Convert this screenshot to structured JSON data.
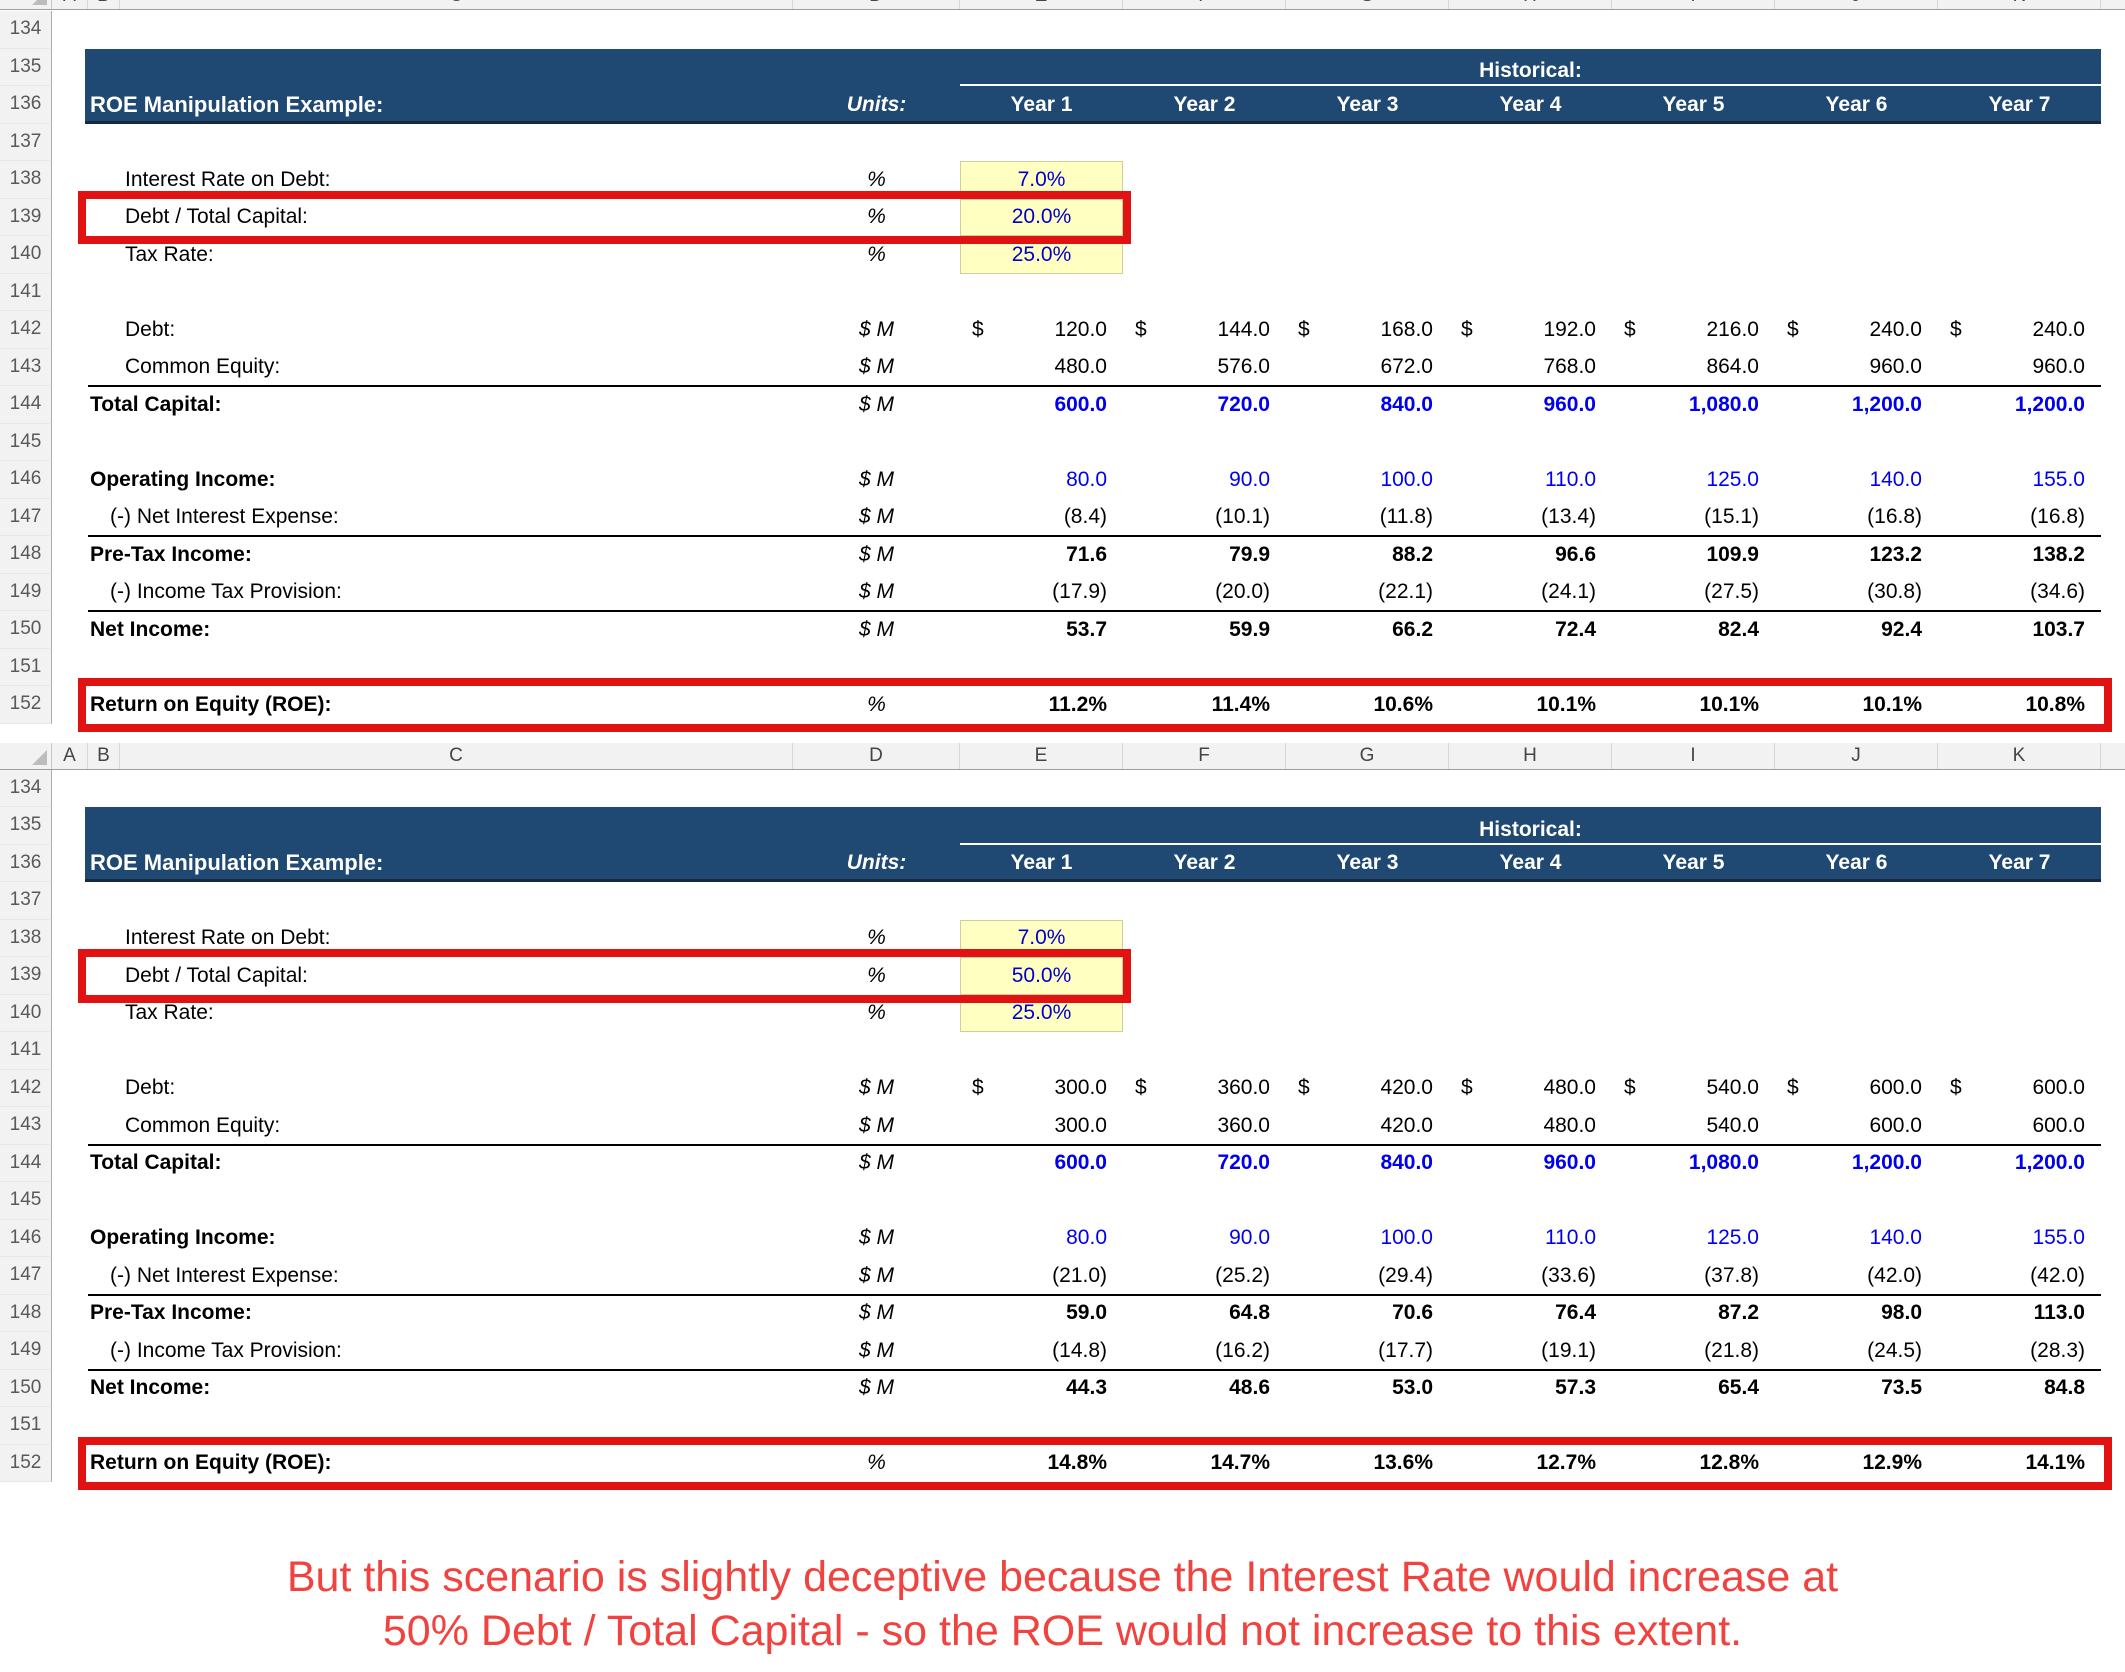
{
  "colors": {
    "header_band": "#1F4872",
    "header_band_border": "#16293E",
    "red_box": "#E01212",
    "caption_red": "#F0433F",
    "input_cell_yellow": "#FFFFC2",
    "value_blue": "#0000EE",
    "input_value_blue": "#0000CC",
    "gutter_bg": "#F2F2F2"
  },
  "column_letters": [
    "A",
    "B",
    "C",
    "D",
    "E",
    "F",
    "G",
    "H",
    "I",
    "J",
    "K"
  ],
  "caption": {
    "line1": "But this scenario is slightly deceptive because the Interest Rate would increase at",
    "line2": "50% Debt / Total Capital - so the ROE would not increase to this extent."
  },
  "sheets": [
    {
      "title": "ROE Manipulation Example:",
      "units_label": "Units:",
      "historical_label": "Historical:",
      "years": [
        "Year 1",
        "Year 2",
        "Year 3",
        "Year 4",
        "Year 5",
        "Year 6",
        "Year 7"
      ],
      "rows": [
        {
          "num": "134",
          "type": "blank"
        },
        {
          "num": "135",
          "type": "hist"
        },
        {
          "num": "136",
          "type": "head"
        },
        {
          "num": "137",
          "type": "blank"
        },
        {
          "num": "138",
          "type": "input",
          "label": "Interest Rate on Debt:",
          "unit": "%",
          "value": "7.0%"
        },
        {
          "num": "139",
          "type": "input",
          "label": "Debt / Total Capital:",
          "unit": "%",
          "value": "20.0%",
          "red_box": true
        },
        {
          "num": "140",
          "type": "input",
          "label": "Tax Rate:",
          "unit": "%",
          "value": "25.0%"
        },
        {
          "num": "141",
          "type": "blank"
        },
        {
          "num": "142",
          "type": "item",
          "label": "Debt:",
          "indent": "ind",
          "unit": "$ M",
          "dollar": true,
          "values": [
            "120.0",
            "144.0",
            "168.0",
            "192.0",
            "216.0",
            "240.0",
            "240.0"
          ]
        },
        {
          "num": "143",
          "type": "item",
          "label": "Common Equity:",
          "indent": "ind",
          "unit": "$ M",
          "rule": true,
          "values": [
            "480.0",
            "576.0",
            "672.0",
            "768.0",
            "864.0",
            "960.0",
            "960.0"
          ]
        },
        {
          "num": "144",
          "type": "item",
          "label": "Total Capital:",
          "indent": "sect",
          "unit": "$ M",
          "value_bold": true,
          "value_color": "blue",
          "values": [
            "600.0",
            "720.0",
            "840.0",
            "960.0",
            "1,080.0",
            "1,200.0",
            "1,200.0"
          ]
        },
        {
          "num": "145",
          "type": "blank"
        },
        {
          "num": "146",
          "type": "item",
          "label": "Operating Income:",
          "indent": "sect",
          "unit": "$ M",
          "value_color": "blue",
          "values": [
            "80.0",
            "90.0",
            "100.0",
            "110.0",
            "125.0",
            "140.0",
            "155.0"
          ]
        },
        {
          "num": "147",
          "type": "item",
          "label": "(-) Net Interest Expense:",
          "indent": "neg",
          "unit": "$ M",
          "rule": true,
          "values": [
            "(8.4)",
            "(10.1)",
            "(11.8)",
            "(13.4)",
            "(15.1)",
            "(16.8)",
            "(16.8)"
          ]
        },
        {
          "num": "148",
          "type": "item",
          "label": "Pre-Tax Income:",
          "indent": "sect",
          "unit": "$ M",
          "value_bold": true,
          "values": [
            "71.6",
            "79.9",
            "88.2",
            "96.6",
            "109.9",
            "123.2",
            "138.2"
          ]
        },
        {
          "num": "149",
          "type": "item",
          "label": "(-) Income Tax Provision:",
          "indent": "neg",
          "unit": "$ M",
          "rule": true,
          "values": [
            "(17.9)",
            "(20.0)",
            "(22.1)",
            "(24.1)",
            "(27.5)",
            "(30.8)",
            "(34.6)"
          ]
        },
        {
          "num": "150",
          "type": "item",
          "label": "Net Income:",
          "indent": "sect",
          "unit": "$ M",
          "value_bold": true,
          "values": [
            "53.7",
            "59.9",
            "66.2",
            "72.4",
            "82.4",
            "92.4",
            "103.7"
          ]
        },
        {
          "num": "151",
          "type": "blank"
        },
        {
          "num": "152",
          "type": "item",
          "label": "Return on Equity (ROE):",
          "indent": "sect",
          "unit": "%",
          "value_bold": true,
          "red_box_full": true,
          "values": [
            "11.2%",
            "11.4%",
            "10.6%",
            "10.1%",
            "10.1%",
            "10.1%",
            "10.8%"
          ]
        }
      ]
    },
    {
      "title": "ROE Manipulation Example:",
      "units_label": "Units:",
      "historical_label": "Historical:",
      "years": [
        "Year 1",
        "Year 2",
        "Year 3",
        "Year 4",
        "Year 5",
        "Year 6",
        "Year 7"
      ],
      "rows": [
        {
          "num": "134",
          "type": "blank"
        },
        {
          "num": "135",
          "type": "hist"
        },
        {
          "num": "136",
          "type": "head"
        },
        {
          "num": "137",
          "type": "blank"
        },
        {
          "num": "138",
          "type": "input",
          "label": "Interest Rate on Debt:",
          "unit": "%",
          "value": "7.0%"
        },
        {
          "num": "139",
          "type": "input",
          "label": "Debt / Total Capital:",
          "unit": "%",
          "value": "50.0%",
          "red_box": true
        },
        {
          "num": "140",
          "type": "input",
          "label": "Tax Rate:",
          "unit": "%",
          "value": "25.0%"
        },
        {
          "num": "141",
          "type": "blank"
        },
        {
          "num": "142",
          "type": "item",
          "label": "Debt:",
          "indent": "ind",
          "unit": "$ M",
          "dollar": true,
          "values": [
            "300.0",
            "360.0",
            "420.0",
            "480.0",
            "540.0",
            "600.0",
            "600.0"
          ]
        },
        {
          "num": "143",
          "type": "item",
          "label": "Common Equity:",
          "indent": "ind",
          "unit": "$ M",
          "rule": true,
          "values": [
            "300.0",
            "360.0",
            "420.0",
            "480.0",
            "540.0",
            "600.0",
            "600.0"
          ]
        },
        {
          "num": "144",
          "type": "item",
          "label": "Total Capital:",
          "indent": "sect",
          "unit": "$ M",
          "value_bold": true,
          "value_color": "blue",
          "values": [
            "600.0",
            "720.0",
            "840.0",
            "960.0",
            "1,080.0",
            "1,200.0",
            "1,200.0"
          ]
        },
        {
          "num": "145",
          "type": "blank"
        },
        {
          "num": "146",
          "type": "item",
          "label": "Operating Income:",
          "indent": "sect",
          "unit": "$ M",
          "value_color": "blue",
          "values": [
            "80.0",
            "90.0",
            "100.0",
            "110.0",
            "125.0",
            "140.0",
            "155.0"
          ]
        },
        {
          "num": "147",
          "type": "item",
          "label": "(-) Net Interest Expense:",
          "indent": "neg",
          "unit": "$ M",
          "rule": true,
          "values": [
            "(21.0)",
            "(25.2)",
            "(29.4)",
            "(33.6)",
            "(37.8)",
            "(42.0)",
            "(42.0)"
          ]
        },
        {
          "num": "148",
          "type": "item",
          "label": "Pre-Tax Income:",
          "indent": "sect",
          "unit": "$ M",
          "value_bold": true,
          "values": [
            "59.0",
            "64.8",
            "70.6",
            "76.4",
            "87.2",
            "98.0",
            "113.0"
          ]
        },
        {
          "num": "149",
          "type": "item",
          "label": "(-) Income Tax Provision:",
          "indent": "neg",
          "unit": "$ M",
          "rule": true,
          "values": [
            "(14.8)",
            "(16.2)",
            "(17.7)",
            "(19.1)",
            "(21.8)",
            "(24.5)",
            "(28.3)"
          ]
        },
        {
          "num": "150",
          "type": "item",
          "label": "Net Income:",
          "indent": "sect",
          "unit": "$ M",
          "value_bold": true,
          "values": [
            "44.3",
            "48.6",
            "53.0",
            "57.3",
            "65.4",
            "73.5",
            "84.8"
          ]
        },
        {
          "num": "151",
          "type": "blank"
        },
        {
          "num": "152",
          "type": "item",
          "label": "Return on Equity (ROE):",
          "indent": "sect",
          "unit": "%",
          "value_bold": true,
          "red_box_full": true,
          "values": [
            "14.8%",
            "14.7%",
            "13.6%",
            "12.7%",
            "12.8%",
            "12.9%",
            "14.1%"
          ]
        }
      ]
    }
  ]
}
